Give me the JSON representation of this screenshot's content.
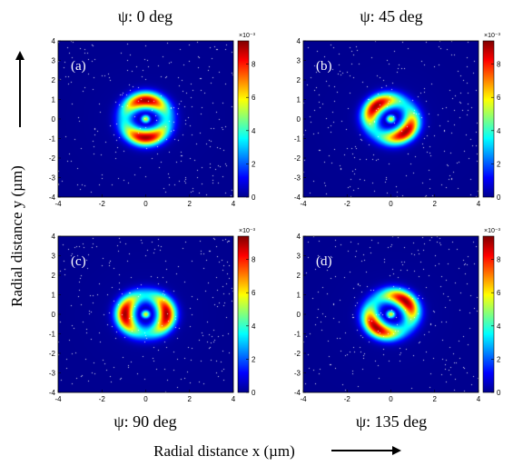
{
  "figure": {
    "xlabel": "Radial distance x (µm)",
    "ylabel": "Radial distance y (µm)",
    "colorbar_multiplier": "×10⁻³"
  },
  "colors": {
    "colormap": [
      "#00008f",
      "#0000ff",
      "#0080ff",
      "#00ffff",
      "#80ff80",
      "#ffff00",
      "#ff8000",
      "#ff0000",
      "#800000"
    ]
  },
  "chart_data": [
    {
      "type": "heatmap",
      "panel_label": "(a)",
      "title": "ψ: 0 deg",
      "psi_deg": 0,
      "xlim": [
        -4,
        4
      ],
      "ylim": [
        -4,
        4
      ],
      "xticks": [
        "-4",
        "-2",
        "0",
        "2",
        "4"
      ],
      "yticks": [
        "4",
        "3",
        "2",
        "1",
        "0",
        "-1",
        "-2",
        "-3",
        "-4"
      ],
      "colorbar": {
        "min": 0,
        "max": 9.4,
        "ticks": [
          "8",
          "6",
          "4",
          "2",
          "0"
        ]
      },
      "intensity_peak": 9,
      "ring_radius_um": 0.95,
      "pattern": "two lobes above and below center (vertical), bright ring around bright center spot"
    },
    {
      "type": "heatmap",
      "panel_label": "(b)",
      "title": "ψ: 45 deg",
      "psi_deg": 45,
      "xlim": [
        -4,
        4
      ],
      "ylim": [
        -4,
        4
      ],
      "xticks": [
        "-4",
        "-2",
        "0",
        "2",
        "4"
      ],
      "yticks": [
        "4",
        "3",
        "2",
        "1",
        "0",
        "-1",
        "-2",
        "-3",
        "-4"
      ],
      "colorbar": {
        "min": 0,
        "max": 9.4,
        "ticks": [
          "8",
          "6",
          "4",
          "2",
          "0"
        ]
      },
      "intensity_peak": 9,
      "ring_radius_um": 0.95,
      "pattern": "two lobes along the anti-diagonal"
    },
    {
      "type": "heatmap",
      "panel_label": "(c)",
      "title": "ψ: 90 deg",
      "psi_deg": 90,
      "xlim": [
        -4,
        4
      ],
      "ylim": [
        -4,
        4
      ],
      "xticks": [
        "-4",
        "-2",
        "0",
        "2",
        "4"
      ],
      "yticks": [
        "4",
        "3",
        "2",
        "1",
        "0",
        "-1",
        "-2",
        "-3",
        "-4"
      ],
      "colorbar": {
        "min": 0,
        "max": 9.4,
        "ticks": [
          "8",
          "6",
          "4",
          "2",
          "0"
        ]
      },
      "intensity_peak": 9,
      "ring_radius_um": 0.95,
      "pattern": "two lobes left and right of center (horizontal)"
    },
    {
      "type": "heatmap",
      "panel_label": "(d)",
      "title": "ψ: 135 deg",
      "psi_deg": 135,
      "xlim": [
        -4,
        4
      ],
      "ylim": [
        -4,
        4
      ],
      "xticks": [
        "-4",
        "-2",
        "0",
        "2",
        "4"
      ],
      "yticks": [
        "4",
        "3",
        "2",
        "1",
        "0",
        "-1",
        "-2",
        "-3",
        "-4"
      ],
      "colorbar": {
        "min": 0,
        "max": 9.4,
        "ticks": [
          "8",
          "6",
          "4",
          "2",
          "0"
        ]
      },
      "intensity_peak": 9,
      "ring_radius_um": 0.95,
      "pattern": "two lobes along the main diagonal"
    }
  ]
}
